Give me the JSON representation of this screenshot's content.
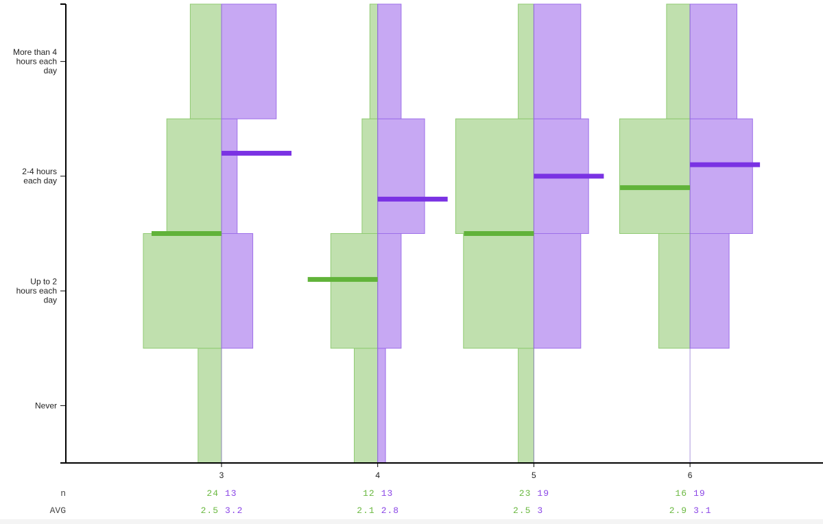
{
  "chart_data": {
    "type": "bar",
    "orientation": "horizontal-distribution",
    "y_categories": [
      "Never",
      "Up to 2 hours each day",
      "2-4 hours each day",
      "More than 4 hours each day"
    ],
    "y_category_lines": [
      [
        "Never"
      ],
      [
        "Up to 2",
        "hours each",
        "day"
      ],
      [
        "2-4 hours",
        "each day"
      ],
      [
        "More than 4",
        "hours each",
        "day"
      ]
    ],
    "x_ticks": [
      "3",
      "4",
      "5",
      "6"
    ],
    "colors": {
      "green": "#c0e0ae",
      "green_stroke": "#8fca72",
      "green_avg": "#61b33a",
      "purple": "#c7a8f3",
      "purple_stroke": "#9d6fe9",
      "purple_avg": "#7a32e3",
      "stat_green": "#6ab840",
      "stat_purple": "#8a45e6"
    },
    "groups": [
      {
        "x": "3",
        "green": {
          "n": 24,
          "avg": 2.5,
          "counts": [
            3,
            10,
            7,
            4
          ]
        },
        "purple": {
          "n": 13,
          "avg": 3.2,
          "counts": [
            0,
            4,
            2,
            7
          ]
        }
      },
      {
        "x": "4",
        "green": {
          "n": 12,
          "avg": 2.1,
          "counts": [
            3,
            6,
            2,
            1
          ]
        },
        "purple": {
          "n": 13,
          "avg": 2.8,
          "counts": [
            1,
            3,
            6,
            3
          ]
        }
      },
      {
        "x": "5",
        "green": {
          "n": 23,
          "avg": 2.5,
          "counts": [
            2,
            9,
            10,
            2
          ]
        },
        "purple": {
          "n": 19,
          "avg": 3,
          "counts": [
            0,
            6,
            7,
            6
          ]
        }
      },
      {
        "x": "6",
        "green": {
          "n": 16,
          "avg": 2.9,
          "counts": [
            0,
            4,
            9,
            3
          ]
        },
        "purple": {
          "n": 19,
          "avg": 3.1,
          "counts": [
            0,
            5,
            8,
            6
          ]
        }
      }
    ],
    "row_labels": {
      "n": "n",
      "avg": "AVG"
    },
    "grid": false,
    "legend": "none"
  }
}
